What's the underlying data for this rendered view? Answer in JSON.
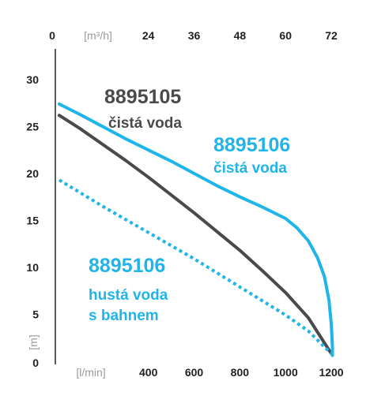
{
  "chart_data": {
    "type": "line",
    "title": "",
    "x": {
      "unit_label": "[l/min]",
      "ticks": [
        400,
        600,
        800,
        1000,
        1200
      ],
      "range": [
        0,
        1300
      ]
    },
    "x_top": {
      "origin_label": "0",
      "unit_label": "[m³/h]",
      "ticks": [
        24,
        36,
        48,
        60,
        72
      ]
    },
    "y": {
      "unit_label": "[m]",
      "origin_label": "0",
      "ticks": [
        5,
        10,
        15,
        20,
        25,
        30
      ],
      "range": [
        0,
        31
      ]
    },
    "grid": false,
    "colors": {
      "dark": "#4a4a4c",
      "cyan": "#1fb5ea"
    },
    "series": [
      {
        "name": "8895105 čistá voda",
        "color": "#4a4a4c",
        "style": "solid",
        "points": [
          [
            10,
            26.2
          ],
          [
            100,
            24.8
          ],
          [
            200,
            23.1
          ],
          [
            300,
            21.4
          ],
          [
            400,
            19.6
          ],
          [
            500,
            17.7
          ],
          [
            600,
            15.8
          ],
          [
            700,
            13.8
          ],
          [
            800,
            11.8
          ],
          [
            900,
            9.6
          ],
          [
            1000,
            7.3
          ],
          [
            1100,
            4.6
          ],
          [
            1200,
            0.8
          ]
        ]
      },
      {
        "name": "8895106 čistá voda",
        "color": "#1fb5ea",
        "style": "solid",
        "points": [
          [
            10,
            27.4
          ],
          [
            100,
            26.3
          ],
          [
            200,
            25.0
          ],
          [
            300,
            23.7
          ],
          [
            400,
            22.5
          ],
          [
            500,
            21.3
          ],
          [
            600,
            20.0
          ],
          [
            700,
            18.7
          ],
          [
            800,
            17.5
          ],
          [
            900,
            16.4
          ],
          [
            1000,
            15.2
          ],
          [
            1050,
            14.2
          ],
          [
            1100,
            12.8
          ],
          [
            1140,
            11.0
          ],
          [
            1170,
            9.0
          ],
          [
            1190,
            6.5
          ],
          [
            1200,
            4.0
          ],
          [
            1205,
            1.5
          ],
          [
            1205,
            0.6
          ]
        ]
      },
      {
        "name": "8895106 hustá voda s bahnem",
        "color": "#1fb5ea",
        "style": "dotted",
        "points": [
          [
            10,
            19.3
          ],
          [
            200,
            16.5
          ],
          [
            400,
            13.7
          ],
          [
            600,
            10.9
          ],
          [
            800,
            7.9
          ],
          [
            1000,
            4.9
          ],
          [
            1100,
            3.2
          ],
          [
            1200,
            0.8
          ]
        ]
      }
    ],
    "annotations": [
      {
        "id": "a1-code",
        "text": "8895105",
        "color": "#4a4a4c",
        "size": "big"
      },
      {
        "id": "a1-desc",
        "text": "čistá voda",
        "color": "#4a4a4c",
        "size": "small"
      },
      {
        "id": "a2-code",
        "text": "8895106",
        "color": "#1fb5ea",
        "size": "big"
      },
      {
        "id": "a2-desc",
        "text": "čistá voda",
        "color": "#1fb5ea",
        "size": "small"
      },
      {
        "id": "a3-code",
        "text": "8895106",
        "color": "#1fb5ea",
        "size": "big"
      },
      {
        "id": "a3-desc1",
        "text": "hustá voda",
        "color": "#1fb5ea",
        "size": "small"
      },
      {
        "id": "a3-desc2",
        "text": "s bahnem",
        "color": "#1fb5ea",
        "size": "small"
      }
    ]
  }
}
